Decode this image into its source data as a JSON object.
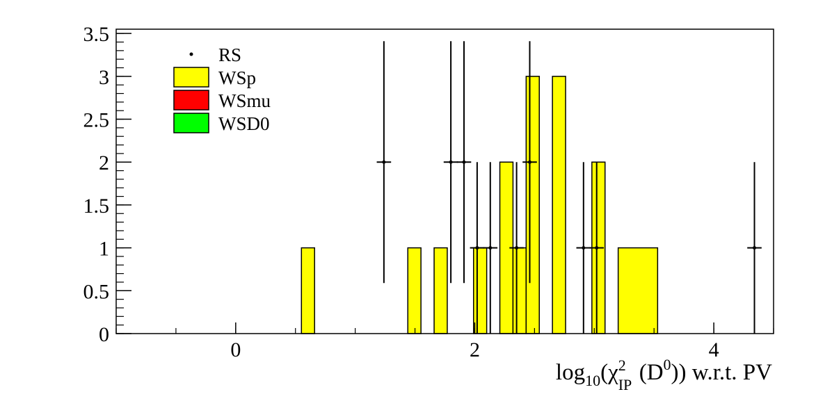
{
  "chart_data": {
    "type": "bar",
    "title": "",
    "xlabel_parts": {
      "pre": "log",
      "sub10": "10",
      "open": "(χ",
      "sup2": "2",
      "subIP": "IP",
      "mid": "(D",
      "sup0": "0",
      "post": ")) w.r.t. PV"
    },
    "ylabel": "",
    "xlim": [
      -1.0,
      4.5
    ],
    "ylim": [
      0,
      3.55
    ],
    "x_ticks": [
      0,
      2,
      4
    ],
    "x_tick_labels": [
      "0",
      "2",
      "4"
    ],
    "y_ticks": [
      0,
      0.5,
      1,
      1.5,
      2,
      2.5,
      3,
      3.5
    ],
    "y_tick_labels": [
      "0",
      "0.5",
      "1",
      "1.5",
      "2",
      "2.5",
      "3",
      "3.5"
    ],
    "legend": {
      "position": "top-left",
      "entries": [
        {
          "name": "RS",
          "marker": "point",
          "color": "#000000"
        },
        {
          "name": "WSp",
          "marker": "box",
          "color": "#ffff00"
        },
        {
          "name": "WSmu",
          "marker": "box",
          "color": "#ff0000"
        },
        {
          "name": "WSD0",
          "marker": "box",
          "color": "#00ff00"
        }
      ]
    },
    "series": [
      {
        "name": "WSp",
        "kind": "histogram",
        "fill": "#ffff00",
        "bins": [
          {
            "x0": 0.55,
            "x1": 0.66,
            "value": 1
          },
          {
            "x0": 1.44,
            "x1": 1.55,
            "value": 1
          },
          {
            "x0": 1.66,
            "x1": 1.77,
            "value": 1
          },
          {
            "x0": 1.99,
            "x1": 2.1,
            "value": 1
          },
          {
            "x0": 2.21,
            "x1": 2.32,
            "value": 2
          },
          {
            "x0": 2.32,
            "x1": 2.43,
            "value": 1
          },
          {
            "x0": 2.43,
            "x1": 2.54,
            "value": 3
          },
          {
            "x0": 2.65,
            "x1": 2.76,
            "value": 3
          },
          {
            "x0": 2.98,
            "x1": 3.09,
            "value": 2
          },
          {
            "x0": 3.2,
            "x1": 3.53,
            "value": 1
          }
        ]
      },
      {
        "name": "RS",
        "kind": "points-with-errors",
        "color": "#000000",
        "points": [
          {
            "x": 1.24,
            "y": 2,
            "ylo": 0.59,
            "yhi": 3.41,
            "xerr": 0.06
          },
          {
            "x": 1.8,
            "y": 2,
            "ylo": 0.59,
            "yhi": 3.41,
            "xerr": 0.06
          },
          {
            "x": 1.91,
            "y": 2,
            "ylo": 0.59,
            "yhi": 3.41,
            "xerr": 0.06
          },
          {
            "x": 2.02,
            "y": 1,
            "ylo": 0,
            "yhi": 2.0,
            "xerr": 0.06
          },
          {
            "x": 2.13,
            "y": 1,
            "ylo": 0,
            "yhi": 2.0,
            "xerr": 0.06
          },
          {
            "x": 2.35,
            "y": 1,
            "ylo": 0,
            "yhi": 2.0,
            "xerr": 0.06
          },
          {
            "x": 2.46,
            "y": 2,
            "ylo": 0.59,
            "yhi": 3.41,
            "xerr": 0.06
          },
          {
            "x": 2.91,
            "y": 1,
            "ylo": 0,
            "yhi": 2.0,
            "xerr": 0.06
          },
          {
            "x": 3.02,
            "y": 1,
            "ylo": 0,
            "yhi": 2.0,
            "xerr": 0.06
          },
          {
            "x": 4.34,
            "y": 1,
            "ylo": 0,
            "yhi": 2.0,
            "xerr": 0.06
          }
        ]
      }
    ],
    "grid": false
  }
}
